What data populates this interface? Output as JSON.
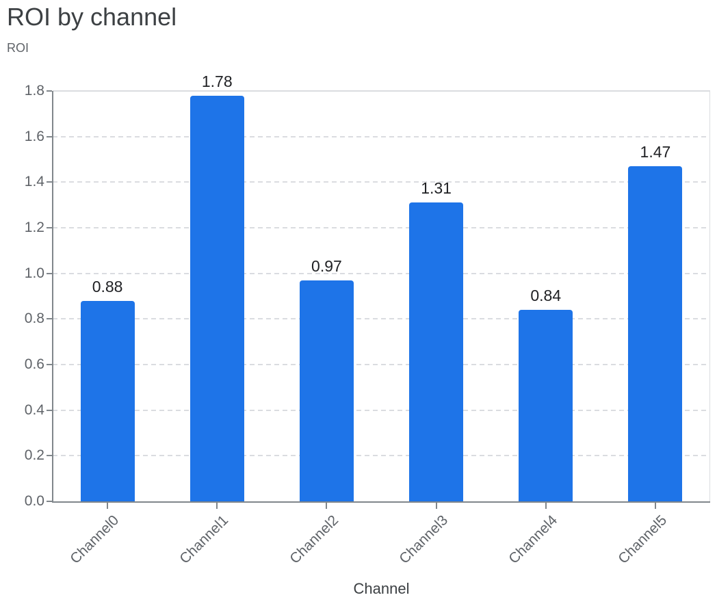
{
  "header": {
    "title": "ROI by channel",
    "y_axis_small_label": "ROI"
  },
  "colors": {
    "bar": "#1e74e8",
    "title_text": "#3c4043",
    "tick_text": "#5f6368",
    "value_label_text": "#202124",
    "gridline": "#dadce0",
    "axis_line": "#80868b"
  },
  "chart_data": {
    "type": "bar",
    "title": "ROI by channel",
    "xlabel": "Channel",
    "ylabel": "ROI",
    "categories": [
      "Channel0",
      "Channel1",
      "Channel2",
      "Channel3",
      "Channel4",
      "Channel5"
    ],
    "values": [
      0.88,
      1.78,
      0.97,
      1.31,
      0.84,
      1.47
    ],
    "value_labels": [
      "0.88",
      "1.78",
      "0.97",
      "1.31",
      "0.84",
      "1.47"
    ],
    "series_name": "ROI",
    "ylim": [
      0,
      1.8
    ],
    "ytick_step": 0.2,
    "yticks": [
      "0.0",
      "0.2",
      "0.4",
      "0.6",
      "0.8",
      "1.0",
      "1.2",
      "1.4",
      "1.6",
      "1.8"
    ],
    "grid": "horizontal-dashed",
    "legend": "none",
    "x_tick_rotation_deg": 45,
    "bar_color": "#1e74e8"
  }
}
